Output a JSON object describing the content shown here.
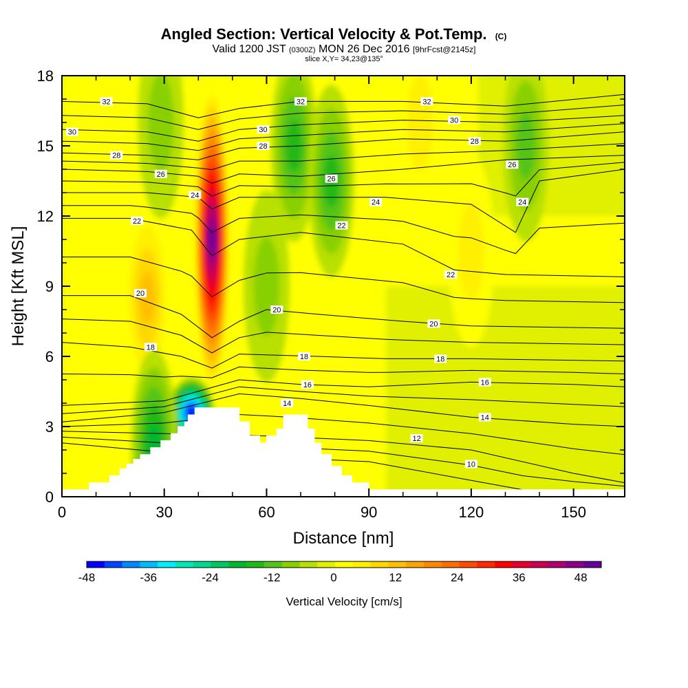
{
  "title": {
    "main": "Angled Section: Vertical Velocity & Pot.Temp.",
    "copyright": "(C)",
    "valid_prefix": "Valid 1200 JST",
    "valid_utc": "(0300Z)",
    "valid_date": "MON 26 Dec 2016",
    "forecast": "[9hrFcst@2145z]",
    "slice": "slice X,Y= 34,23@135°"
  },
  "chart_data": {
    "type": "heatmap",
    "xlabel": "Distance [nm]",
    "ylabel": "Height [Kft MSL]",
    "xlim": [
      0,
      165
    ],
    "ylim": [
      0,
      18
    ],
    "x_ticks": [
      0,
      30,
      60,
      90,
      120,
      150
    ],
    "y_ticks": [
      0,
      3,
      6,
      9,
      12,
      15,
      18
    ],
    "x_tick_labels": [
      "0",
      "30",
      "60",
      "90",
      "120",
      "150"
    ],
    "y_tick_labels": [
      "0",
      "3",
      "6",
      "9",
      "12",
      "15",
      "18"
    ],
    "grid": false,
    "colorbar": {
      "label": "Vertical Velocity [cm/s]",
      "range": [
        -48,
        52
      ],
      "tick_values": [
        -48,
        -36,
        -24,
        -12,
        0,
        12,
        24,
        36,
        48
      ],
      "tick_labels": [
        "-48",
        "-36",
        "-24",
        "-12",
        "0",
        "12",
        "24",
        "36",
        "48"
      ],
      "colors": [
        "#0000ff",
        "#0044ff",
        "#0088ff",
        "#00bbff",
        "#00eeff",
        "#00e8b8",
        "#00d890",
        "#00c860",
        "#00b830",
        "#22b818",
        "#55c418",
        "#88d000",
        "#b8e000",
        "#e0f000",
        "#ffff00",
        "#fff000",
        "#ffd800",
        "#ffc000",
        "#ffa400",
        "#ff8800",
        "#ff6c00",
        "#ff4c00",
        "#ff2800",
        "#ff0000",
        "#e8002c",
        "#cc0050",
        "#b00070",
        "#8c0088",
        "#660099"
      ],
      "placement": "bottom"
    },
    "terrain_profile": {
      "note_label": "",
      "points": [
        [
          0,
          0.3
        ],
        [
          8,
          0.3
        ],
        [
          8,
          0.6
        ],
        [
          14,
          0.6
        ],
        [
          14,
          0.9
        ],
        [
          17,
          0.9
        ],
        [
          17,
          1.2
        ],
        [
          19,
          1.2
        ],
        [
          19,
          1.4
        ],
        [
          21,
          1.4
        ],
        [
          21,
          1.6
        ],
        [
          23,
          1.6
        ],
        [
          23,
          1.8
        ],
        [
          26,
          1.8
        ],
        [
          26,
          2.1
        ],
        [
          29,
          2.1
        ],
        [
          29,
          2.4
        ],
        [
          32,
          2.4
        ],
        [
          32,
          2.7
        ],
        [
          34,
          2.7
        ],
        [
          34,
          3.0
        ],
        [
          36,
          3.0
        ],
        [
          36,
          3.2
        ],
        [
          37,
          3.2
        ],
        [
          37,
          3.5
        ],
        [
          39,
          3.5
        ],
        [
          39,
          3.8
        ],
        [
          52,
          3.8
        ],
        [
          52,
          3.2
        ],
        [
          55,
          3.2
        ],
        [
          55,
          2.6
        ],
        [
          58,
          2.6
        ],
        [
          58,
          2.3
        ],
        [
          60,
          2.3
        ],
        [
          60,
          2.6
        ],
        [
          63,
          2.6
        ],
        [
          63,
          2.9
        ],
        [
          65,
          2.9
        ],
        [
          65,
          3.5
        ],
        [
          72,
          3.5
        ],
        [
          72,
          2.9
        ],
        [
          74,
          2.9
        ],
        [
          74,
          2.3
        ],
        [
          76,
          2.3
        ],
        [
          76,
          1.8
        ],
        [
          79,
          1.8
        ],
        [
          79,
          1.3
        ],
        [
          82,
          1.3
        ],
        [
          82,
          0.9
        ],
        [
          85,
          0.9
        ],
        [
          85,
          0.6
        ],
        [
          90,
          0.6
        ],
        [
          90,
          0.3
        ],
        [
          165,
          0.3
        ]
      ]
    },
    "vertical_velocity_features": [
      {
        "type": "updraft",
        "x": 44,
        "y": 11,
        "peak": 52
      },
      {
        "type": "updraft",
        "x": 25,
        "y": 8.5,
        "peak": 14
      },
      {
        "type": "updraft",
        "x": 105,
        "y": 16,
        "peak": 8
      },
      {
        "type": "updraft",
        "x": 120,
        "y": 10.5,
        "peak": 6
      },
      {
        "type": "downdraft",
        "x": 38,
        "y": 3.6,
        "peak": -44
      },
      {
        "type": "downdraft",
        "x": 27,
        "y": 2.2,
        "peak": -16
      },
      {
        "type": "downdraft",
        "x": 68,
        "y": 15,
        "peak": -13
      },
      {
        "type": "downdraft",
        "x": 79,
        "y": 13.5,
        "peak": -15
      },
      {
        "type": "downdraft",
        "x": 29,
        "y": 16,
        "peak": -8
      },
      {
        "type": "downdraft",
        "x": 136,
        "y": 15,
        "peak": -9
      },
      {
        "type": "downdraft",
        "x": 60,
        "y": 9,
        "peak": -6
      }
    ],
    "potential_temperature_contours": [
      {
        "level": 10,
        "label": "10",
        "points": [
          [
            0,
            2.3
          ],
          [
            30,
            1.9
          ],
          [
            60,
            1.7
          ],
          [
            90,
            1.5
          ],
          [
            120,
            0.7
          ],
          [
            135,
            0.3
          ]
        ],
        "labels_at": [
          [
            120,
            1.4
          ]
        ]
      },
      {
        "level": 12,
        "label": "12",
        "points": [
          [
            0,
            2.8
          ],
          [
            30,
            2.7
          ],
          [
            60,
            2.6
          ],
          [
            90,
            2.4
          ],
          [
            120,
            2.0
          ],
          [
            150,
            1.0
          ],
          [
            165,
            0.6
          ]
        ],
        "labels_at": [
          [
            104,
            2.5
          ]
        ]
      },
      {
        "level": 14,
        "label": "14",
        "points": [
          [
            0,
            3.2
          ],
          [
            30,
            3.6
          ],
          [
            52,
            4.4
          ],
          [
            70,
            4.2
          ],
          [
            90,
            3.9
          ],
          [
            120,
            3.4
          ],
          [
            150,
            3.1
          ],
          [
            165,
            3.0
          ]
        ],
        "labels_at": [
          [
            66,
            4.0
          ],
          [
            124,
            3.4
          ]
        ]
      },
      {
        "level": 16,
        "label": "16",
        "points": [
          [
            0,
            3.9
          ],
          [
            30,
            4.1
          ],
          [
            52,
            5.0
          ],
          [
            70,
            4.8
          ],
          [
            90,
            4.7
          ],
          [
            120,
            4.9
          ],
          [
            150,
            4.8
          ],
          [
            165,
            4.7
          ]
        ],
        "labels_at": [
          [
            72,
            4.8
          ],
          [
            124,
            4.9
          ]
        ]
      },
      {
        "level": 18,
        "label": "18",
        "points": [
          [
            0,
            6.6
          ],
          [
            20,
            6.4
          ],
          [
            35,
            6.0
          ],
          [
            44,
            5.5
          ],
          [
            52,
            6.1
          ],
          [
            75,
            6.0
          ],
          [
            95,
            5.9
          ],
          [
            120,
            5.9
          ],
          [
            165,
            5.8
          ]
        ],
        "labels_at": [
          [
            26,
            6.4
          ],
          [
            71,
            6.0
          ],
          [
            111,
            5.9
          ]
        ]
      },
      {
        "level": 20,
        "label": "20",
        "points": [
          [
            0,
            8.6
          ],
          [
            20,
            8.6
          ],
          [
            35,
            7.8
          ],
          [
            44,
            6.8
          ],
          [
            52,
            7.5
          ],
          [
            60,
            8.0
          ],
          [
            75,
            7.8
          ],
          [
            100,
            7.5
          ],
          [
            120,
            7.3
          ],
          [
            165,
            7.2
          ]
        ],
        "labels_at": [
          [
            23,
            8.7
          ],
          [
            63,
            8.0
          ],
          [
            109,
            7.4
          ]
        ]
      },
      {
        "level": 22,
        "label": "22",
        "points": [
          [
            0,
            11.9
          ],
          [
            20,
            11.9
          ],
          [
            38,
            11.4
          ],
          [
            44,
            10.3
          ],
          [
            52,
            11.0
          ],
          [
            70,
            11.3
          ],
          [
            100,
            10.8
          ],
          [
            115,
            9.7
          ],
          [
            130,
            9.5
          ],
          [
            165,
            9.4
          ]
        ],
        "labels_at": [
          [
            22,
            11.8
          ],
          [
            82,
            11.6
          ],
          [
            114,
            9.5
          ]
        ]
      },
      {
        "level": 24,
        "label": "24",
        "points": [
          [
            0,
            13.0
          ],
          [
            25,
            13.0
          ],
          [
            40,
            12.8
          ],
          [
            44,
            12.3
          ],
          [
            52,
            12.8
          ],
          [
            70,
            12.8
          ],
          [
            95,
            12.8
          ],
          [
            120,
            12.5
          ],
          [
            133,
            11.3
          ],
          [
            140,
            13.5
          ],
          [
            165,
            14.0
          ]
        ],
        "labels_at": [
          [
            39,
            12.9
          ],
          [
            92,
            12.6
          ],
          [
            135,
            12.6
          ]
        ]
      },
      {
        "level": 26,
        "label": "26",
        "points": [
          [
            0,
            14.0
          ],
          [
            25,
            13.9
          ],
          [
            40,
            13.7
          ],
          [
            44,
            13.4
          ],
          [
            52,
            13.8
          ],
          [
            70,
            13.7
          ],
          [
            100,
            14.0
          ],
          [
            130,
            14.4
          ],
          [
            165,
            14.6
          ]
        ],
        "labels_at": [
          [
            29,
            13.8
          ],
          [
            79,
            13.6
          ],
          [
            132,
            14.2
          ]
        ]
      },
      {
        "level": 28,
        "label": "28",
        "points": [
          [
            0,
            14.7
          ],
          [
            25,
            14.6
          ],
          [
            40,
            14.4
          ],
          [
            52,
            14.9
          ],
          [
            70,
            15.0
          ],
          [
            100,
            15.3
          ],
          [
            130,
            15.2
          ],
          [
            165,
            15.6
          ]
        ],
        "labels_at": [
          [
            16,
            14.6
          ],
          [
            59,
            15.0
          ],
          [
            121,
            15.2
          ]
        ]
      },
      {
        "level": 30,
        "label": "30",
        "points": [
          [
            0,
            15.7
          ],
          [
            25,
            15.6
          ],
          [
            40,
            15.2
          ],
          [
            52,
            15.7
          ],
          [
            70,
            15.9
          ],
          [
            100,
            16.1
          ],
          [
            130,
            16.0
          ],
          [
            165,
            16.3
          ]
        ],
        "labels_at": [
          [
            3,
            15.6
          ],
          [
            59,
            15.7
          ],
          [
            115,
            16.1
          ]
        ]
      },
      {
        "level": 32,
        "label": "32",
        "points": [
          [
            0,
            16.9
          ],
          [
            25,
            16.8
          ],
          [
            40,
            16.2
          ],
          [
            52,
            16.6
          ],
          [
            70,
            16.9
          ],
          [
            100,
            16.9
          ],
          [
            130,
            16.7
          ],
          [
            165,
            17.2
          ]
        ],
        "labels_at": [
          [
            13,
            16.9
          ],
          [
            70,
            16.9
          ],
          [
            107,
            16.9
          ]
        ]
      }
    ]
  }
}
